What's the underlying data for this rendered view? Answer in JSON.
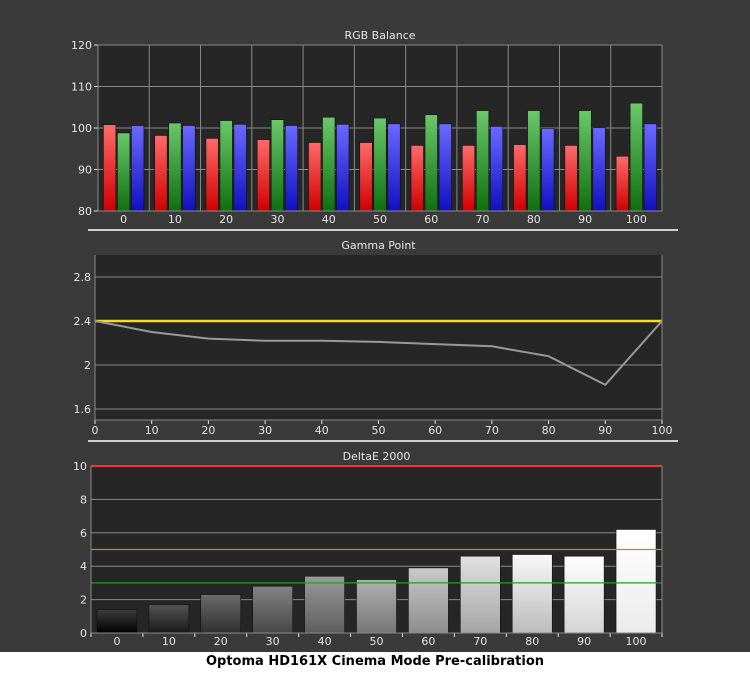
{
  "caption": "Optoma HD161X Cinema Mode Pre-calibration",
  "colors": {
    "background": "#3a3a3a",
    "plot_background": "#262626",
    "grid": "#8a8a8a",
    "text": "#e6e6e6",
    "red": "#ff3030",
    "green": "#30b030",
    "blue": "#3a3aff",
    "gamma_target": "#f0e020",
    "gamma_line": "#9a9a9a",
    "deltae_red": "#ff3030",
    "deltae_yellow": "#9a9a30",
    "deltae_green": "#20a020"
  },
  "chart_data": [
    {
      "type": "bar",
      "title": "RGB Balance",
      "categories": [
        "0",
        "10",
        "20",
        "30",
        "40",
        "50",
        "60",
        "70",
        "80",
        "90",
        "100"
      ],
      "ylim": [
        80,
        120
      ],
      "yticks": [
        80,
        90,
        100,
        110,
        120
      ],
      "series": [
        {
          "color": "red",
          "values": [
            100.8,
            98.2,
            97.5,
            97.2,
            96.5,
            96.5,
            95.8,
            95.8,
            96.0,
            95.8,
            93.2
          ]
        },
        {
          "color": "green",
          "values": [
            98.8,
            101.2,
            101.8,
            102.0,
            102.6,
            102.4,
            103.2,
            104.2,
            104.2,
            104.2,
            106.0
          ]
        },
        {
          "color": "blue",
          "values": [
            100.6,
            100.6,
            100.9,
            100.6,
            100.9,
            101.0,
            101.0,
            100.4,
            99.9,
            100.1,
            101.0
          ]
        }
      ],
      "grid": true
    },
    {
      "type": "line",
      "title": "Gamma Point",
      "x": [
        0,
        10,
        20,
        30,
        40,
        50,
        60,
        70,
        80,
        90,
        100
      ],
      "xticks": [
        0,
        10,
        20,
        30,
        40,
        50,
        60,
        70,
        80,
        90,
        100
      ],
      "ylim": [
        1.5,
        3.0
      ],
      "yticks": [
        1.6,
        2,
        2.4,
        2.8
      ],
      "ytick_labels": [
        "1.6",
        "2",
        "2.4",
        "2.8"
      ],
      "target": 2.4,
      "series": [
        {
          "color": "gray",
          "values": [
            2.4,
            2.3,
            2.24,
            2.22,
            2.22,
            2.21,
            2.19,
            2.17,
            2.08,
            1.82,
            2.4
          ]
        }
      ],
      "grid": true
    },
    {
      "type": "bar",
      "title": "DeltaE 2000",
      "categories": [
        "0",
        "10",
        "20",
        "30",
        "40",
        "50",
        "60",
        "70",
        "80",
        "90",
        "100"
      ],
      "ylim": [
        0,
        10
      ],
      "yticks": [
        0,
        2,
        4,
        6,
        8,
        10
      ],
      "values": [
        1.4,
        1.7,
        2.3,
        2.8,
        3.4,
        3.2,
        3.9,
        4.6,
        4.7,
        4.6,
        6.2
      ],
      "thresholds": [
        10,
        5,
        3
      ],
      "grid": true
    }
  ]
}
